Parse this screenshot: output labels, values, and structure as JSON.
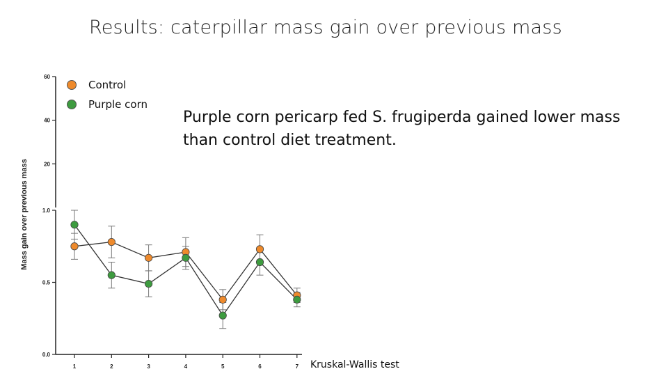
{
  "slide": {
    "title": "Results: caterpillar mass gain over previous mass",
    "finding": "Purple corn pericarp fed S. frugiperda gained lower mass than control diet treatment.",
    "test_note": "Kruskal-Wallis test"
  },
  "legend": [
    {
      "label": "Control",
      "color": "#ee8a2c"
    },
    {
      "label": "Purple corn",
      "color": "#3d9b3f"
    }
  ],
  "chart_data": {
    "type": "line",
    "title": "",
    "xlabel": "",
    "ylabel": "Mass gain over previous mass",
    "x": [
      1,
      2,
      3,
      4,
      5,
      6,
      7
    ],
    "x_tick_labels": [
      "1",
      "2",
      "3",
      "4",
      "5",
      "6",
      "7"
    ],
    "y_axis": {
      "broken": true,
      "lower_ticks": [
        "0.0",
        "0.5",
        "1.0"
      ],
      "upper_ticks": [
        "20",
        "40",
        "60"
      ]
    },
    "grid": false,
    "series": [
      {
        "name": "Control",
        "color": "#ee8a2c",
        "values": [
          0.75,
          0.78,
          0.67,
          0.71,
          0.38,
          0.73,
          0.41
        ],
        "error": [
          0.09,
          0.11,
          0.09,
          0.1,
          0.07,
          0.1,
          0.05
        ]
      },
      {
        "name": "Purple corn",
        "color": "#3d9b3f",
        "values": [
          0.9,
          0.55,
          0.49,
          0.67,
          0.27,
          0.64,
          0.38
        ],
        "error": [
          0.1,
          0.09,
          0.09,
          0.08,
          0.09,
          0.09,
          0.05
        ]
      }
    ]
  }
}
